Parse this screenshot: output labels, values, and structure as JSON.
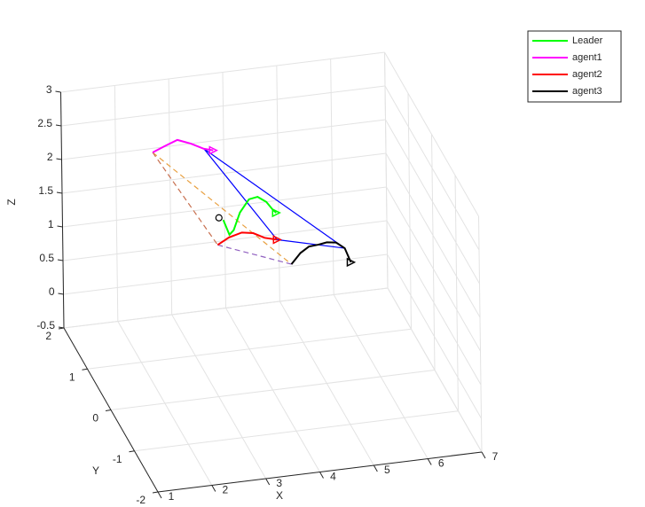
{
  "chart_data": {
    "type": "line3d",
    "xlabel": "X",
    "ylabel": "Y",
    "zlabel": "Z",
    "xlim": [
      1,
      7
    ],
    "ylim": [
      -2,
      2
    ],
    "zlim": [
      -0.5,
      3
    ],
    "xticks": [
      1,
      2,
      3,
      4,
      5,
      6,
      7
    ],
    "yticks": [
      -2,
      -1,
      0,
      1,
      2
    ],
    "zticks": [
      -0.5,
      0,
      0.5,
      1,
      1.5,
      2,
      2.5,
      3
    ],
    "grid": true,
    "legend": "upper right",
    "end_marker": "triangle",
    "series": [
      {
        "name": "Leader",
        "color": "#00ff00",
        "x": [
          3.55,
          3.66,
          3.74,
          3.86,
          4.03,
          4.19,
          4.35,
          4.47,
          4.53
        ],
        "y": [
          1,
          1,
          1,
          1,
          1,
          1,
          1,
          1,
          1
        ],
        "z": [
          1.46,
          1.23,
          1.29,
          1.54,
          1.72,
          1.74,
          1.65,
          1.52,
          1.47
        ]
      },
      {
        "name": "agent1",
        "color": "#ff00ff",
        "x": [
          2.26,
          2.48,
          2.72,
          2.97,
          3.21,
          3.38
        ],
        "y": [
          1,
          1,
          1,
          1,
          1,
          1
        ],
        "z": [
          2.59,
          2.66,
          2.73,
          2.65,
          2.55,
          2.51
        ]
      },
      {
        "name": "agent2",
        "color": "#ff0000",
        "x": [
          3.44,
          3.65,
          3.89,
          4.1,
          4.31,
          4.54
        ],
        "y": [
          1,
          1,
          1,
          1,
          1,
          1
        ],
        "z": [
          1.1,
          1.19,
          1.24,
          1.21,
          1.12,
          1.07
        ]
      },
      {
        "name": "agent3",
        "color": "#000000",
        "x": [
          4.8,
          4.97,
          5.13,
          5.3,
          5.46,
          5.63,
          5.79,
          5.9
        ],
        "y": [
          1,
          1,
          1,
          1,
          1,
          1,
          1,
          1
        ],
        "z": [
          0.68,
          0.83,
          0.91,
          0.92,
          0.94,
          0.92,
          0.82,
          0.6
        ]
      }
    ],
    "links": [
      {
        "color": "#0000ff",
        "dashed": false,
        "x": [
          3.21,
          4.54,
          5.79,
          3.21
        ],
        "y": [
          1,
          1,
          1,
          1
        ],
        "z": [
          2.55,
          1.07,
          0.82,
          2.55
        ]
      },
      {
        "color": "#e8a040",
        "dashed": true,
        "x": [
          2.26,
          4.8
        ],
        "y": [
          1,
          1
        ],
        "z": [
          2.59,
          0.68
        ]
      },
      {
        "color": "#c87050",
        "dashed": true,
        "x": [
          2.26,
          3.44
        ],
        "y": [
          1,
          1
        ],
        "z": [
          2.59,
          1.1
        ]
      },
      {
        "color": "#9060c0",
        "dashed": true,
        "x": [
          3.44,
          4.8
        ],
        "y": [
          1,
          1
        ],
        "z": [
          1.1,
          0.68
        ]
      }
    ],
    "markers": [
      {
        "shape": "circle",
        "color": "#000000",
        "x": 3.47,
        "y": 1,
        "z": 1.5
      }
    ]
  }
}
